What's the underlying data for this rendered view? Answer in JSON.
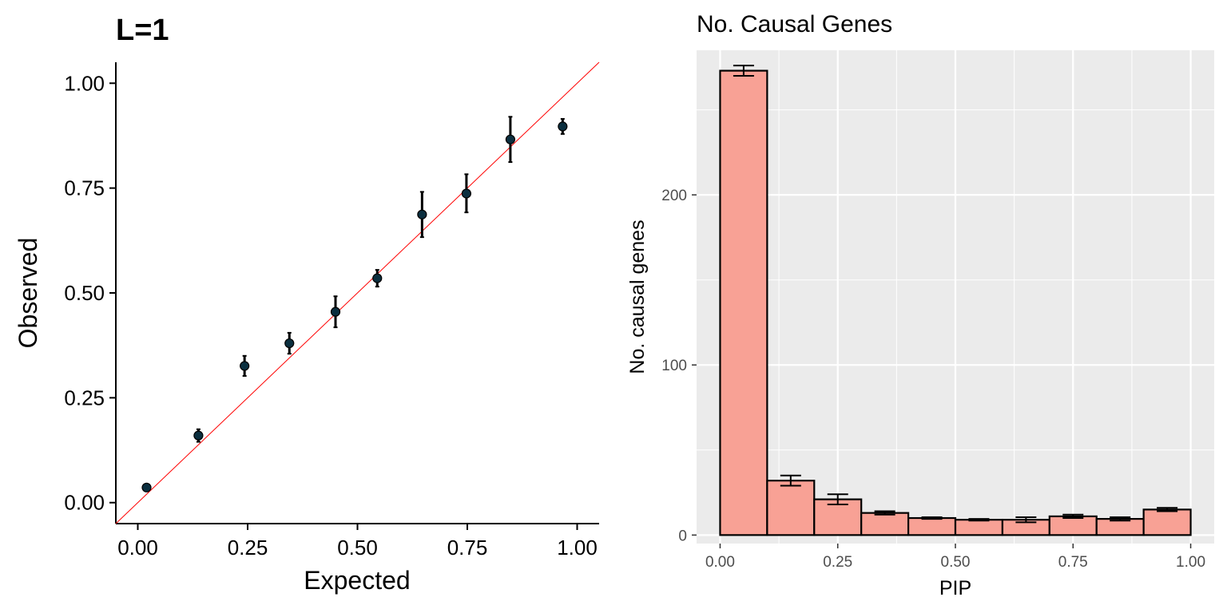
{
  "chart_data": [
    {
      "type": "scatter",
      "title": "L=1",
      "xlabel": "Expected",
      "ylabel": "Observed",
      "xlim": [
        -0.05,
        1.05
      ],
      "ylim": [
        -0.05,
        1.05
      ],
      "xticks": [
        "0.00",
        "0.25",
        "0.50",
        "0.75",
        "1.00"
      ],
      "yticks": [
        "0.00",
        "0.25",
        "0.50",
        "0.75",
        "1.00"
      ],
      "reference_line": {
        "slope": 1,
        "intercept": 0,
        "color": "#ff0000"
      },
      "point_color": "#0b2f3f",
      "points": [
        {
          "x": 0.02,
          "y": 0.036,
          "lo": 0.033,
          "hi": 0.039
        },
        {
          "x": 0.138,
          "y": 0.16,
          "lo": 0.145,
          "hi": 0.175
        },
        {
          "x": 0.243,
          "y": 0.326,
          "lo": 0.302,
          "hi": 0.35
        },
        {
          "x": 0.345,
          "y": 0.38,
          "lo": 0.355,
          "hi": 0.405
        },
        {
          "x": 0.45,
          "y": 0.455,
          "lo": 0.418,
          "hi": 0.492
        },
        {
          "x": 0.545,
          "y": 0.535,
          "lo": 0.515,
          "hi": 0.555
        },
        {
          "x": 0.647,
          "y": 0.687,
          "lo": 0.633,
          "hi": 0.741
        },
        {
          "x": 0.748,
          "y": 0.737,
          "lo": 0.692,
          "hi": 0.783
        },
        {
          "x": 0.848,
          "y": 0.866,
          "lo": 0.812,
          "hi": 0.92
        },
        {
          "x": 0.967,
          "y": 0.897,
          "lo": 0.879,
          "hi": 0.915
        }
      ]
    },
    {
      "type": "bar",
      "title": "No. Causal Genes",
      "xlabel": "PIP",
      "ylabel": "No. causal genes",
      "xlim": [
        -0.05,
        1.05
      ],
      "ylim": [
        -5,
        285
      ],
      "xticks": [
        "0.00",
        "0.25",
        "0.50",
        "0.75",
        "1.00"
      ],
      "yticks": [
        "0",
        "100",
        "200"
      ],
      "bar_fill": "#f8a195",
      "bar_edges": [
        0,
        0.1,
        0.2,
        0.3,
        0.4,
        0.5,
        0.6,
        0.7,
        0.8,
        0.9,
        1.0
      ],
      "values": [
        273,
        32,
        21,
        13,
        10,
        9,
        9,
        11,
        9.5,
        15
      ],
      "error_lo": [
        270,
        29,
        18,
        12,
        9.5,
        8.5,
        7.5,
        10,
        8.5,
        14
      ],
      "error_hi": [
        276,
        35,
        24,
        14,
        10.5,
        9.5,
        10.5,
        12,
        10.5,
        16
      ]
    }
  ]
}
